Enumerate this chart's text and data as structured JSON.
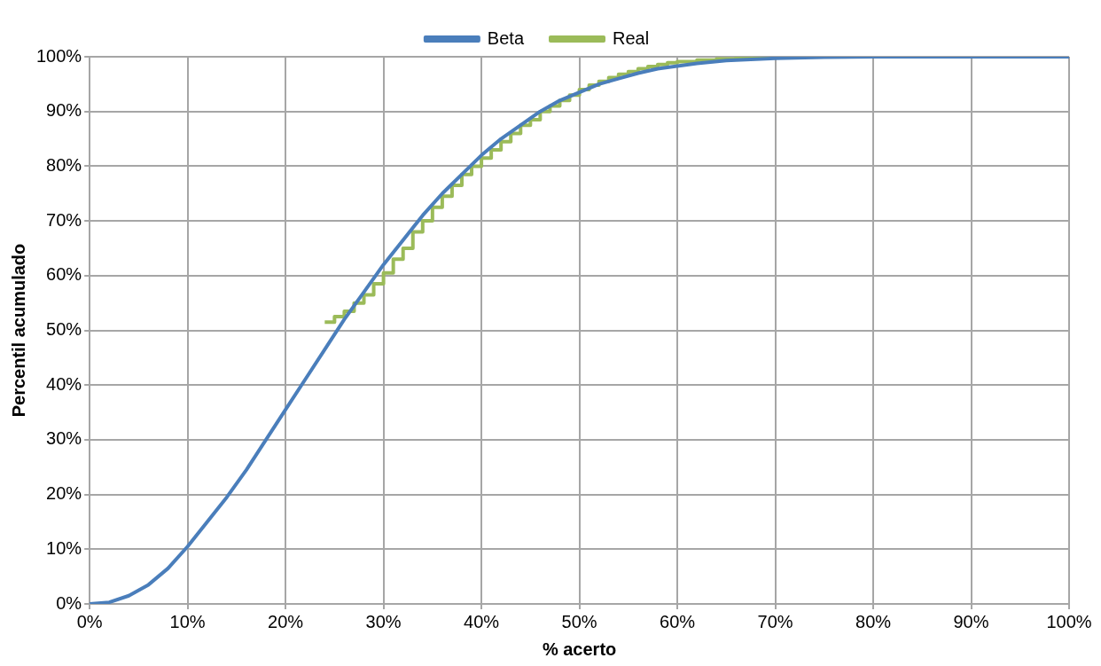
{
  "chart_data": {
    "type": "line",
    "xlabel": "% acerto",
    "ylabel": "Percentil acumulado",
    "legend": "top",
    "grid": true,
    "marker": "none",
    "line_style": "solid",
    "xlim": [
      0,
      100
    ],
    "ylim": [
      0,
      100
    ],
    "xticks": [
      {
        "value": 0,
        "label": "0%"
      },
      {
        "value": 10,
        "label": "10%"
      },
      {
        "value": 20,
        "label": "20%"
      },
      {
        "value": 30,
        "label": "30%"
      },
      {
        "value": 40,
        "label": "40%"
      },
      {
        "value": 50,
        "label": "50%"
      },
      {
        "value": 60,
        "label": "60%"
      },
      {
        "value": 70,
        "label": "70%"
      },
      {
        "value": 80,
        "label": "80%"
      },
      {
        "value": 90,
        "label": "90%"
      },
      {
        "value": 100,
        "label": "100%"
      }
    ],
    "yticks": [
      {
        "value": 0,
        "label": "0%"
      },
      {
        "value": 10,
        "label": "10%"
      },
      {
        "value": 20,
        "label": "20%"
      },
      {
        "value": 30,
        "label": "30%"
      },
      {
        "value": 40,
        "label": "40%"
      },
      {
        "value": 50,
        "label": "50%"
      },
      {
        "value": 60,
        "label": "60%"
      },
      {
        "value": 70,
        "label": "70%"
      },
      {
        "value": 80,
        "label": "80%"
      },
      {
        "value": 90,
        "label": "90%"
      },
      {
        "value": 100,
        "label": "100%"
      }
    ],
    "series": [
      {
        "name": "Beta",
        "color": "#4a7ebb",
        "x": [
          0,
          2,
          4,
          6,
          8,
          10,
          12,
          14,
          16,
          18,
          20,
          22,
          24,
          26,
          28,
          30,
          32,
          34,
          36,
          38,
          40,
          42,
          44,
          46,
          48,
          50,
          52,
          54,
          56,
          58,
          60,
          62,
          65,
          70,
          75,
          80,
          100
        ],
        "values": [
          0,
          0.3,
          1.5,
          3.5,
          6.5,
          10.5,
          15,
          19.5,
          24.5,
          30,
          35.5,
          41,
          46.5,
          52,
          57,
          62,
          66.5,
          71,
          75,
          78.5,
          82,
          85,
          87.5,
          90,
          92,
          93.5,
          95,
          96,
          97,
          97.8,
          98.3,
          98.8,
          99.3,
          99.7,
          99.9,
          100,
          100
        ]
      },
      {
        "name": "Real",
        "color": "#9bbb59",
        "type": "step",
        "x": [
          24,
          25,
          26,
          27,
          28,
          29,
          30,
          31,
          32,
          33,
          34,
          35,
          36,
          37,
          38,
          39,
          40,
          41,
          42,
          43,
          44,
          45,
          46,
          47,
          48,
          49,
          50,
          51,
          52,
          53,
          54,
          55,
          56,
          57,
          58,
          59,
          60,
          62,
          64,
          66,
          68,
          70,
          73
        ],
        "values": [
          51.5,
          52.5,
          53.5,
          55,
          56.5,
          58.5,
          60.5,
          63,
          65,
          68,
          70,
          72.5,
          74.5,
          76.5,
          78.5,
          80,
          81.5,
          83,
          84.5,
          86,
          87.5,
          88.5,
          90,
          91,
          92,
          93,
          94,
          94.8,
          95.5,
          96.2,
          96.8,
          97.3,
          97.8,
          98.2,
          98.6,
          98.9,
          99.1,
          99.4,
          99.6,
          99.8,
          99.9,
          100,
          100
        ]
      }
    ]
  }
}
